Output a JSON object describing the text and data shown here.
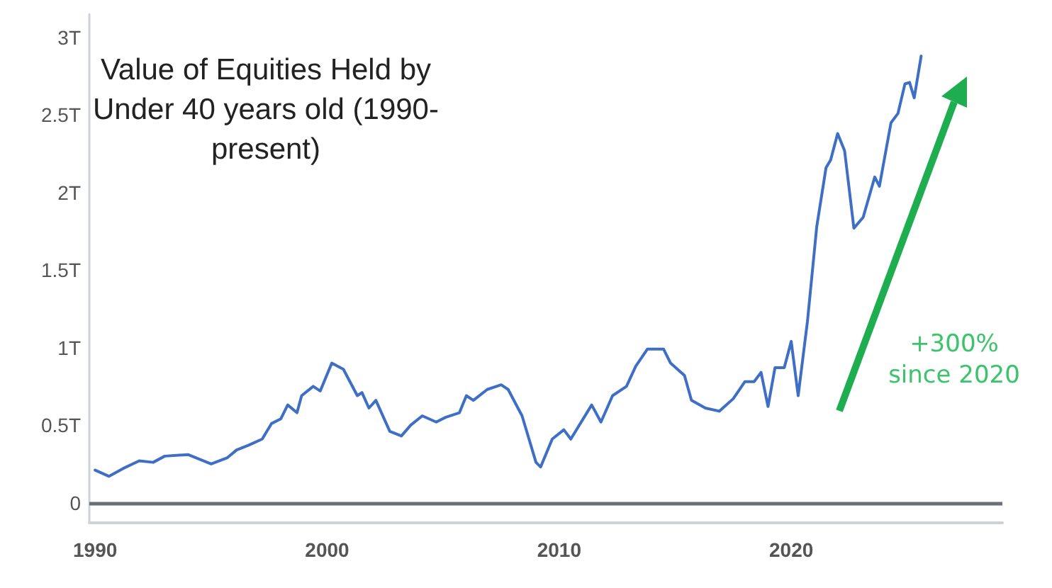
{
  "chart_data": {
    "type": "line",
    "title": "Value of Equities Held by Under 40 years old (1990-present)",
    "annotations": [
      "+300% since 2020"
    ],
    "x": [
      1990.0,
      1990.6,
      1991.2,
      1991.9,
      1992.5,
      1993.0,
      1994.0,
      1995.0,
      1995.7,
      1996.1,
      1996.6,
      1997.2,
      1997.6,
      1998.0,
      1998.3,
      1998.7,
      1998.9,
      1999.4,
      1999.7,
      2000.2,
      2000.7,
      2001.3,
      2001.5,
      2001.8,
      2002.1,
      2002.7,
      2003.2,
      2003.6,
      2004.1,
      2004.7,
      2005.1,
      2005.7,
      2006.0,
      2006.3,
      2006.9,
      2007.5,
      2007.8,
      2008.4,
      2009.0,
      2009.2,
      2009.7,
      2010.2,
      2010.5,
      2011.4,
      2011.8,
      2012.3,
      2012.9,
      2013.3,
      2013.8,
      2014.5,
      2014.8,
      2015.4,
      2015.7,
      2016.3,
      2016.9,
      2017.5,
      2018.0,
      2018.4,
      2018.7,
      2019.0,
      2019.3,
      2019.7,
      2020.0,
      2020.3,
      2020.7,
      2021.1,
      2021.5,
      2021.7,
      2022.0,
      2022.3,
      2022.7,
      2023.1,
      2023.6,
      2023.8,
      2024.3,
      2024.6,
      2024.9,
      2025.1,
      2025.3,
      2025.6
    ],
    "series": [
      {
        "color": "#3f6fc4",
        "values": [
          0.21,
          0.17,
          0.22,
          0.27,
          0.26,
          0.3,
          0.31,
          0.25,
          0.29,
          0.34,
          0.37,
          0.41,
          0.51,
          0.54,
          0.63,
          0.58,
          0.69,
          0.75,
          0.72,
          0.9,
          0.86,
          0.69,
          0.71,
          0.61,
          0.66,
          0.46,
          0.43,
          0.5,
          0.56,
          0.52,
          0.55,
          0.58,
          0.69,
          0.66,
          0.73,
          0.76,
          0.73,
          0.56,
          0.26,
          0.23,
          0.41,
          0.47,
          0.41,
          0.63,
          0.52,
          0.69,
          0.75,
          0.88,
          0.99,
          0.99,
          0.9,
          0.82,
          0.66,
          0.61,
          0.59,
          0.67,
          0.78,
          0.78,
          0.84,
          0.62,
          0.87,
          0.87,
          1.04,
          0.69,
          1.17,
          1.78,
          2.16,
          2.21,
          2.38,
          2.27,
          1.77,
          1.84,
          2.1,
          2.04,
          2.45,
          2.51,
          2.7,
          2.71,
          2.61,
          2.88
        ]
      }
    ],
    "xlim": [
      1989.75,
      2029.1
    ],
    "xticks": [
      1990,
      2000,
      2010,
      2020
    ],
    "ylim": [
      -0.13,
      3.15
    ],
    "yticks": [
      0,
      {
        "value": 0.5,
        "label": "0.5T"
      },
      {
        "value": 1,
        "label": "1T"
      },
      {
        "value": 1.5,
        "label": "1.5T"
      },
      {
        "value": 2,
        "label": "2T"
      },
      {
        "value": 2.5,
        "label": "2.5T"
      },
      {
        "value": 3,
        "label": "3T"
      }
    ],
    "ref_lines": [
      {
        "axis": "y",
        "value": 0,
        "color": "#6b6f78"
      }
    ],
    "grid": false,
    "marker": "none",
    "line_style": "solid"
  }
}
